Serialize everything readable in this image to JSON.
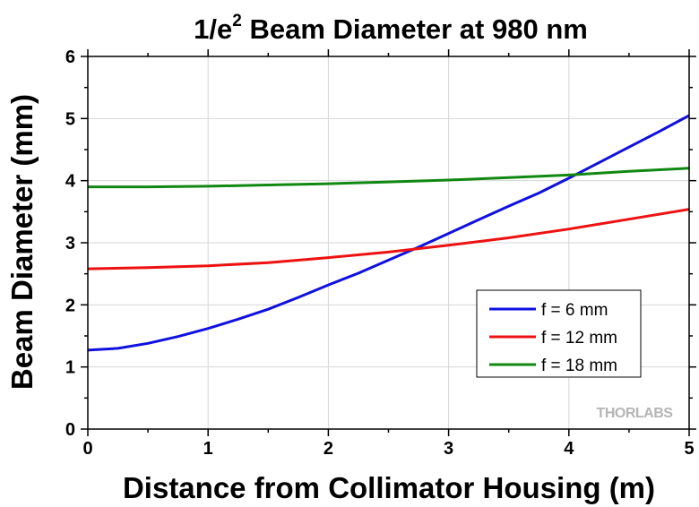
{
  "chart_data": {
    "type": "line",
    "title": {
      "main": "1/e",
      "superscript": "2",
      "rest": " Beam Diameter at 980 nm"
    },
    "xlabel": "Distance from Collimator Housing (m)",
    "ylabel": "Beam Diameter (mm)",
    "xlim": [
      0,
      5
    ],
    "ylim": [
      0,
      6
    ],
    "xticks": [
      "0",
      "1",
      "2",
      "3",
      "4",
      "5"
    ],
    "yticks": [
      "0",
      "1",
      "2",
      "3",
      "4",
      "5",
      "6"
    ],
    "grid": true,
    "legend_position": "bottom-right",
    "watermark": "THORLABS",
    "series": [
      {
        "name": "f = 6 mm",
        "color": "#1010e0",
        "x": [
          0,
          0.25,
          0.5,
          0.75,
          1,
          1.25,
          1.5,
          1.75,
          2,
          2.25,
          2.5,
          2.75,
          3,
          3.25,
          3.5,
          3.75,
          4,
          4.25,
          4.5,
          4.75,
          5
        ],
        "y": [
          1.27,
          1.3,
          1.38,
          1.49,
          1.62,
          1.77,
          1.93,
          2.12,
          2.32,
          2.51,
          2.72,
          2.93,
          3.15,
          3.37,
          3.59,
          3.8,
          4.04,
          4.29,
          4.54,
          4.79,
          5.05
        ]
      },
      {
        "name": "f = 12 mm",
        "color": "#ee1111",
        "x": [
          0,
          0.5,
          1,
          1.5,
          2,
          2.5,
          3,
          3.5,
          4,
          4.5,
          5
        ],
        "y": [
          2.58,
          2.6,
          2.63,
          2.68,
          2.76,
          2.85,
          2.96,
          3.08,
          3.22,
          3.38,
          3.54
        ]
      },
      {
        "name": "f = 18 mm",
        "color": "#118811",
        "x": [
          0,
          0.5,
          1,
          1.5,
          2,
          2.5,
          3,
          3.5,
          4,
          4.5,
          5
        ],
        "y": [
          3.9,
          3.9,
          3.91,
          3.93,
          3.95,
          3.98,
          4.01,
          4.05,
          4.09,
          4.15,
          4.2
        ]
      }
    ]
  }
}
